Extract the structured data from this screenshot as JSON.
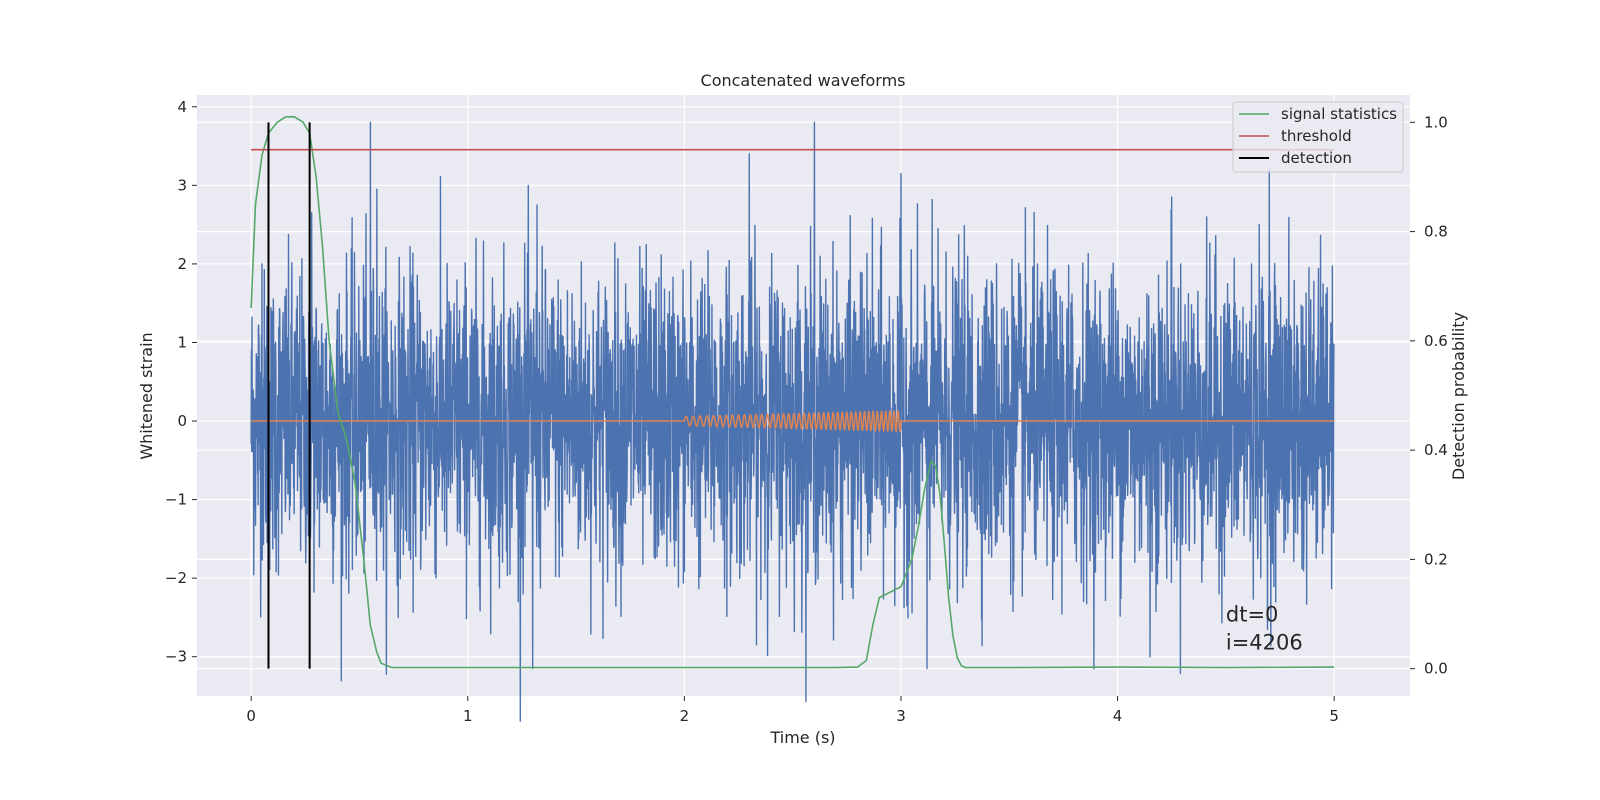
{
  "chart_data": {
    "type": "line",
    "title": "Concatenated waveforms",
    "xlabel": "Time (s)",
    "ylabel": "Whitened strain",
    "y2label": "Detection probability",
    "xlim": [
      -0.25,
      5.35
    ],
    "ylim": [
      -3.5,
      4.15
    ],
    "y2lim": [
      -0.05,
      1.05
    ],
    "xticks": [
      0,
      1,
      2,
      3,
      4,
      5
    ],
    "yticks": [
      -3,
      -2,
      -1,
      0,
      1,
      2,
      3,
      4
    ],
    "y2ticks": [
      0.0,
      0.2,
      0.4,
      0.6,
      0.8,
      1.0
    ],
    "grid": true,
    "legend_position": "top-right",
    "series": [
      {
        "name": "",
        "axis": "left",
        "color": "#4c72b0",
        "kind": "noise",
        "x_range": [
          0,
          5
        ],
        "points": 4206,
        "peaks": [
          [
            0.55,
            3.8
          ],
          [
            2.6,
            3.8
          ],
          [
            0.58,
            2.95
          ],
          [
            1.32,
            2.75
          ],
          [
            2.3,
            3.4
          ],
          [
            3.0,
            3.15
          ],
          [
            4.7,
            3.2
          ],
          [
            4.25,
            2.85
          ],
          [
            0.28,
            2.65
          ],
          [
            1.3,
            -3.15
          ],
          [
            3.12,
            -3.15
          ],
          [
            4.15,
            -3.0
          ],
          [
            0.05,
            2.0
          ]
        ]
      },
      {
        "name": "",
        "axis": "left",
        "color": "#dd8452",
        "kind": "chirp",
        "x_range": [
          0,
          5
        ],
        "chirp_start": 2.0,
        "chirp_end": 3.0,
        "amp_start": 0.06,
        "amp_end": 0.13
      },
      {
        "name": "signal statistics",
        "axis": "right",
        "color": "#55a868",
        "x": [
          0.0,
          0.02,
          0.05,
          0.08,
          0.12,
          0.16,
          0.2,
          0.24,
          0.27,
          0.3,
          0.33,
          0.36,
          0.4,
          0.44,
          0.48,
          0.52,
          0.55,
          0.58,
          0.6,
          0.65,
          1.0,
          2.0,
          2.7,
          2.8,
          2.84,
          2.87,
          2.9,
          2.95,
          3.0,
          3.05,
          3.08,
          3.11,
          3.14,
          3.16,
          3.18,
          3.2,
          3.22,
          3.24,
          3.26,
          3.28,
          3.3,
          3.5,
          4.0,
          4.5,
          5.0
        ],
        "y": [
          0.66,
          0.85,
          0.94,
          0.98,
          1.0,
          1.01,
          1.01,
          1.0,
          0.98,
          0.9,
          0.77,
          0.6,
          0.47,
          0.42,
          0.34,
          0.2,
          0.08,
          0.03,
          0.01,
          0.002,
          0.002,
          0.002,
          0.002,
          0.003,
          0.015,
          0.08,
          0.13,
          0.14,
          0.15,
          0.2,
          0.26,
          0.33,
          0.38,
          0.37,
          0.32,
          0.23,
          0.13,
          0.06,
          0.02,
          0.005,
          0.002,
          0.002,
          0.003,
          0.002,
          0.003
        ]
      },
      {
        "name": "threshold",
        "axis": "right",
        "color": "#c44e52",
        "x": [
          0,
          5
        ],
        "y": [
          0.95,
          0.95
        ]
      }
    ],
    "detections": {
      "name": "detection",
      "color": "#000000",
      "x": [
        0.08,
        0.27
      ]
    },
    "annotation": {
      "line1": "dt=0",
      "line2": "i=4206",
      "x": 4.5,
      "y": -2.55
    }
  }
}
